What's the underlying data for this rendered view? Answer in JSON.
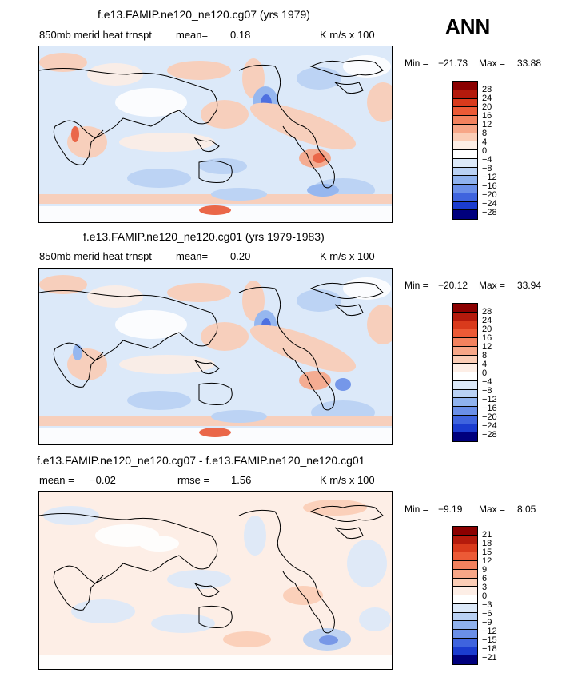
{
  "season": "ANN",
  "panels": [
    {
      "title": "f.e13.FAMIP.ne120_ne120.cg07 (yrs 1979)",
      "left_label": "850mb merid heat trnspt",
      "stat_label": "mean=",
      "stat_value": "0.18",
      "units": "K m/s x 100",
      "min_label": "Min =",
      "min_value": "−21.73",
      "max_label": "Max =",
      "max_value": "33.88",
      "colorbar_levels": [
        "28",
        "24",
        "20",
        "16",
        "12",
        "8",
        "4",
        "0",
        "−4",
        "−8",
        "−12",
        "−16",
        "−20",
        "−24",
        "−28"
      ]
    },
    {
      "title": "f.e13.FAMIP.ne120_ne120.cg01 (yrs 1979-1983)",
      "left_label": "850mb merid heat trnspt",
      "stat_label": "mean=",
      "stat_value": "0.20",
      "units": "K m/s x 100",
      "min_label": "Min =",
      "min_value": "−20.12",
      "max_label": "Max =",
      "max_value": "33.94",
      "colorbar_levels": [
        "28",
        "24",
        "20",
        "16",
        "12",
        "8",
        "4",
        "0",
        "−4",
        "−8",
        "−12",
        "−16",
        "−20",
        "−24",
        "−28"
      ]
    },
    {
      "title": "f.e13.FAMIP.ne120_ne120.cg07 - f.e13.FAMIP.ne120_ne120.cg01",
      "mean_label": "mean =",
      "mean_value": "−0.02",
      "rmse_label": "rmse =",
      "rmse_value": "1.56",
      "units": "K m/s x 100",
      "min_label": "Min =",
      "min_value": "−9.19",
      "max_label": "Max =",
      "max_value": "8.05",
      "colorbar_levels": [
        "21",
        "18",
        "15",
        "12",
        "9",
        "6",
        "3",
        "0",
        "−3",
        "−6",
        "−9",
        "−12",
        "−15",
        "−18",
        "−21"
      ]
    }
  ],
  "colors": {
    "scale": [
      "#8b0000",
      "#b41a0c",
      "#d93a1c",
      "#ec5a36",
      "#f3825e",
      "#f7a687",
      "#fbcdb6",
      "#fdeee6",
      "#ffffff",
      "#dce9f9",
      "#b9d1f4",
      "#8fb2ee",
      "#6a8fe8",
      "#3f64de",
      "#1b3ccf",
      "#0a1ea3",
      "#00007d"
    ]
  }
}
